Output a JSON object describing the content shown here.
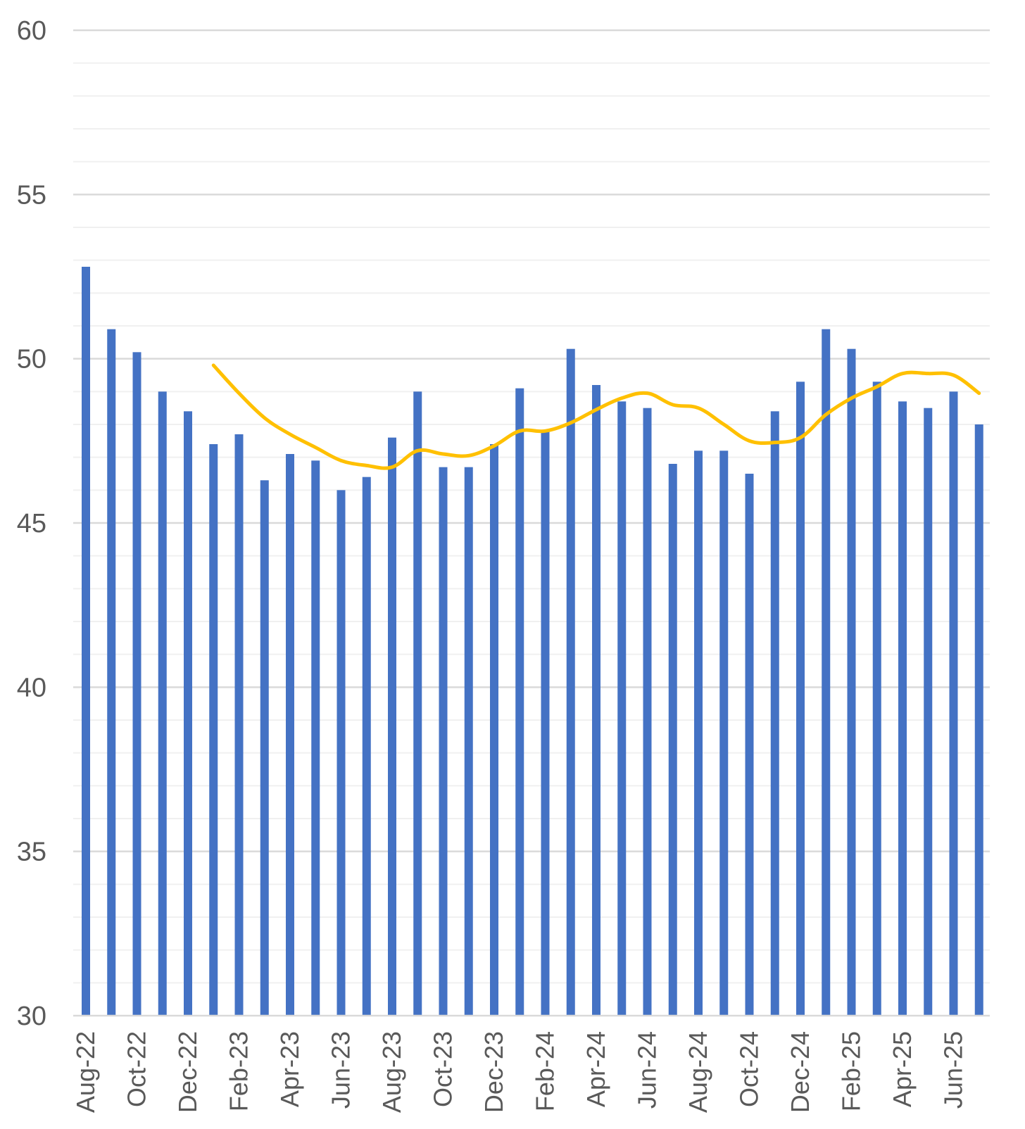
{
  "chart_data": {
    "type": "bar",
    "title": "",
    "xlabel": "",
    "ylabel": "",
    "ylim": [
      30,
      60
    ],
    "y_ticks": [
      "30",
      "35",
      "40",
      "45",
      "50",
      "55",
      "60"
    ],
    "major_grid": true,
    "minor_grid": true,
    "legend": "none",
    "categories": [
      "Aug-22",
      "Sep-22",
      "Oct-22",
      "Nov-22",
      "Dec-22",
      "Jan-23",
      "Feb-23",
      "Mar-23",
      "Apr-23",
      "May-23",
      "Jun-23",
      "Jul-23",
      "Aug-23",
      "Sep-23",
      "Oct-23",
      "Nov-23",
      "Dec-23",
      "Jan-24",
      "Feb-24",
      "Mar-24",
      "Apr-24",
      "May-24",
      "Jun-24",
      "Jul-24",
      "Aug-24",
      "Sep-24",
      "Oct-24",
      "Nov-24",
      "Dec-24",
      "Jan-25",
      "Feb-25",
      "Mar-25",
      "Apr-25",
      "May-25",
      "Jun-25",
      "Jul-25"
    ],
    "x_tick_labels": [
      "Aug-22",
      "Oct-22",
      "Dec-22",
      "Feb-23",
      "Apr-23",
      "Jun-23",
      "Aug-23",
      "Oct-23",
      "Dec-23",
      "Feb-24",
      "Apr-24",
      "Jun-24",
      "Aug-24",
      "Oct-24",
      "Dec-24",
      "Feb-25",
      "Apr-25",
      "Jun-25"
    ],
    "series": [
      {
        "type": "bar",
        "color": "#4472C4",
        "values": [
          52.8,
          50.9,
          50.2,
          49.0,
          48.4,
          47.4,
          47.7,
          46.3,
          47.1,
          46.9,
          46.0,
          46.4,
          47.6,
          49.0,
          46.7,
          46.7,
          47.4,
          49.1,
          47.8,
          50.3,
          49.2,
          48.7,
          48.5,
          46.8,
          47.2,
          47.2,
          46.5,
          48.4,
          49.3,
          50.9,
          50.3,
          49.3,
          48.7,
          48.5,
          49.0,
          48.0
        ]
      },
      {
        "type": "line",
        "color": "#FFC000",
        "values": [
          null,
          null,
          null,
          null,
          null,
          49.8,
          48.95,
          48.2,
          47.7,
          47.3,
          46.9,
          46.75,
          46.7,
          47.2,
          47.1,
          47.05,
          47.35,
          47.8,
          47.8,
          48.05,
          48.45,
          48.8,
          48.95,
          48.6,
          48.5,
          48.0,
          47.5,
          47.45,
          47.6,
          48.3,
          48.8,
          49.15,
          49.55,
          49.55,
          49.5,
          48.95
        ]
      }
    ]
  }
}
